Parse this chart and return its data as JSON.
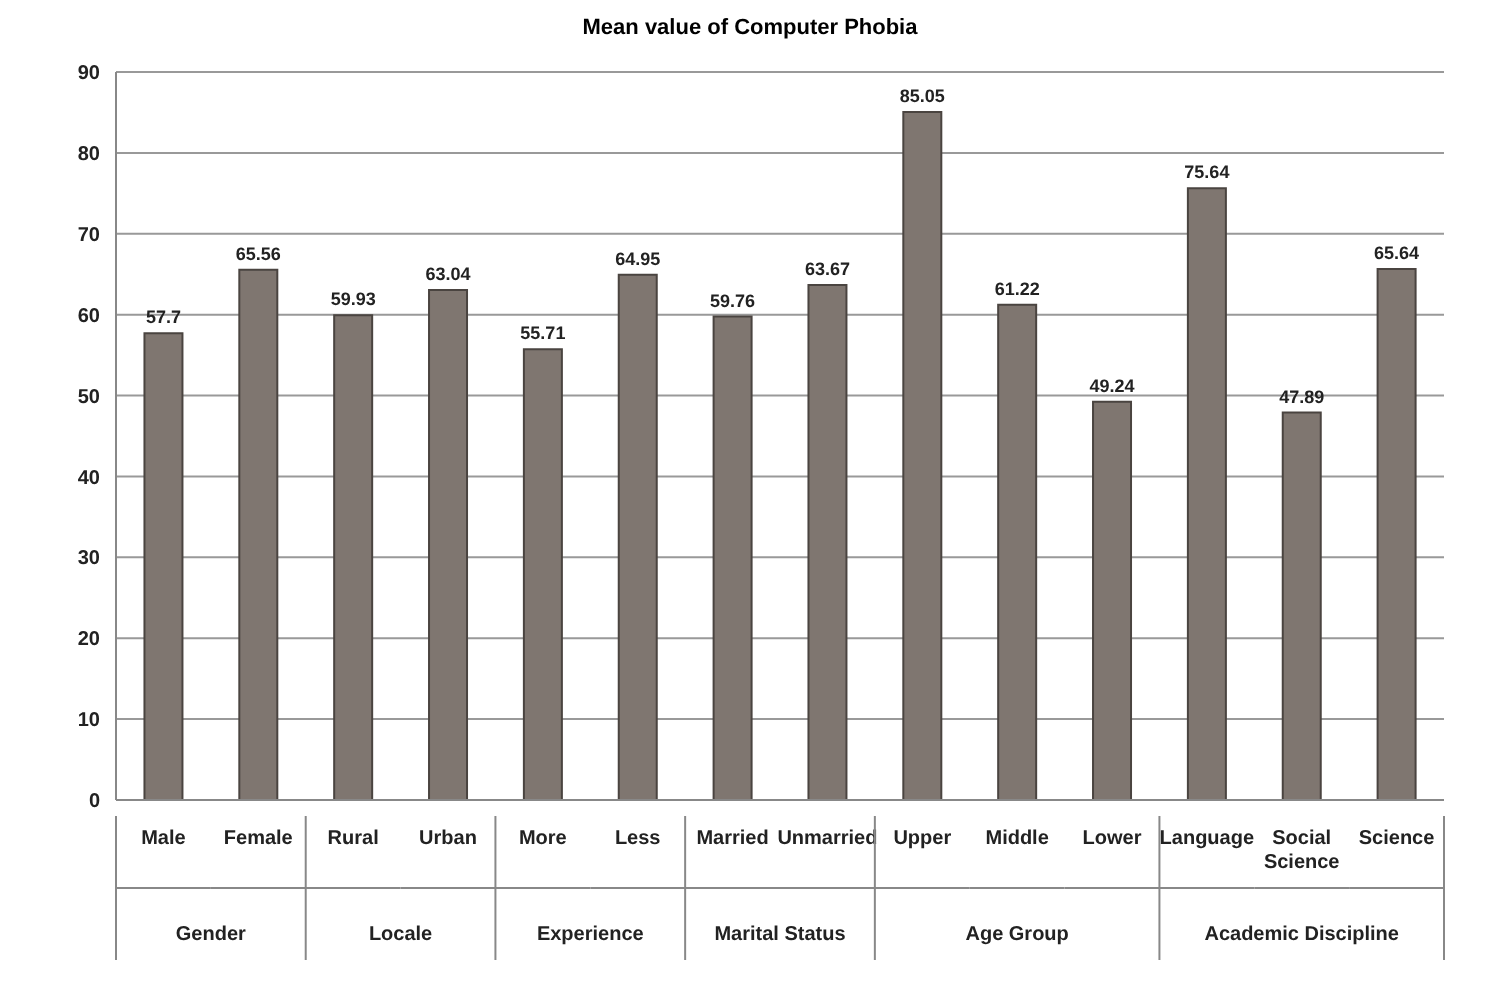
{
  "chart_data": {
    "type": "bar",
    "title": "Mean value of Computer Phobia",
    "categories": [
      "Male",
      "Female",
      "Rural",
      "Urban",
      "More",
      "Less",
      "Married",
      "Unmarried",
      "Upper",
      "Middle",
      "Lower",
      "Language",
      "Social Science",
      "Science"
    ],
    "values": [
      57.7,
      65.56,
      59.93,
      63.04,
      55.71,
      64.95,
      59.76,
      63.67,
      85.05,
      61.22,
      49.24,
      75.64,
      47.89,
      65.64
    ],
    "color": "#7f7670",
    "ylim": [
      0,
      90
    ],
    "yticks": [
      0,
      10,
      20,
      30,
      40,
      50,
      60,
      70,
      80,
      90
    ],
    "grid": "y",
    "data_labels": true,
    "annotations": [
      "Gender",
      "Locale",
      "Experience",
      "Marital Status",
      "Age Group",
      "Academic Discipline"
    ]
  }
}
